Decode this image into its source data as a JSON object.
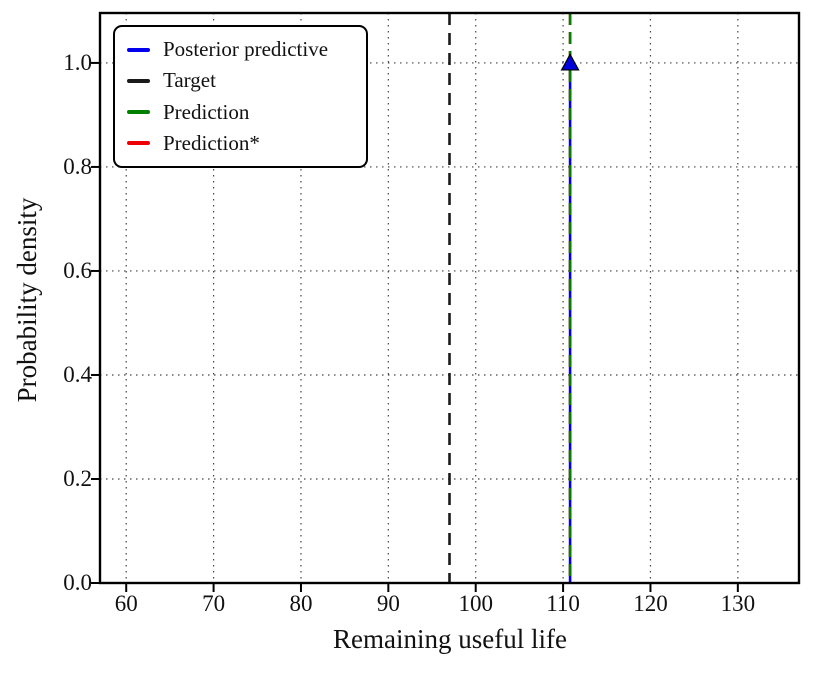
{
  "figure": {
    "background": "#ffffff"
  },
  "chart_data": {
    "type": "line",
    "title": "",
    "xlabel": "Remaining useful life",
    "ylabel": "Probability density",
    "xlim": [
      57,
      137
    ],
    "ylim": [
      0,
      1.096
    ],
    "xticks": [
      60,
      70,
      80,
      90,
      100,
      110,
      120,
      130
    ],
    "xtick_labels": [
      "60",
      "70",
      "80",
      "90",
      "100",
      "110",
      "120",
      "130"
    ],
    "yticks": [
      0,
      0.2,
      0.4,
      0.6,
      0.8,
      1.0
    ],
    "ytick_labels": [
      "0.0",
      "0.2",
      "0.4",
      "0.6",
      "0.8",
      "1.0"
    ],
    "grid": {
      "on": true,
      "style": "dotted",
      "color": "#444444"
    },
    "frame_color": "#000000",
    "legend": {
      "position": "upper-left",
      "entries": [
        {
          "label": "Posterior predictive",
          "color": "#0000ee"
        },
        {
          "label": "Target",
          "color": "#1a1a1a"
        },
        {
          "label": "Prediction",
          "color": "#007f00"
        },
        {
          "label": "Prediction*",
          "color": "#ee0000"
        }
      ]
    },
    "series": [
      {
        "name": "Posterior predictive",
        "type": "vline",
        "x": 110.8,
        "y_top": 1.0,
        "style": "solid",
        "color": "#0000ee"
      },
      {
        "name": "Prediction*",
        "type": "vline",
        "x": 110.8,
        "y_top": 1.096,
        "style": "dashed",
        "color": "#ee0000",
        "hidden_behind": "Prediction"
      },
      {
        "name": "Prediction",
        "type": "vline",
        "x": 110.8,
        "y_top": 1.096,
        "style": "dashed",
        "color": "#007f00"
      },
      {
        "name": "Target",
        "type": "vline",
        "x": 97,
        "y_top": 1.096,
        "style": "dashed",
        "color": "#1a1a1a"
      }
    ],
    "marker": {
      "shape": "triangle-up",
      "x": 110.8,
      "y": 1.0,
      "fill": "#0000dd",
      "edge": "#000000"
    }
  }
}
